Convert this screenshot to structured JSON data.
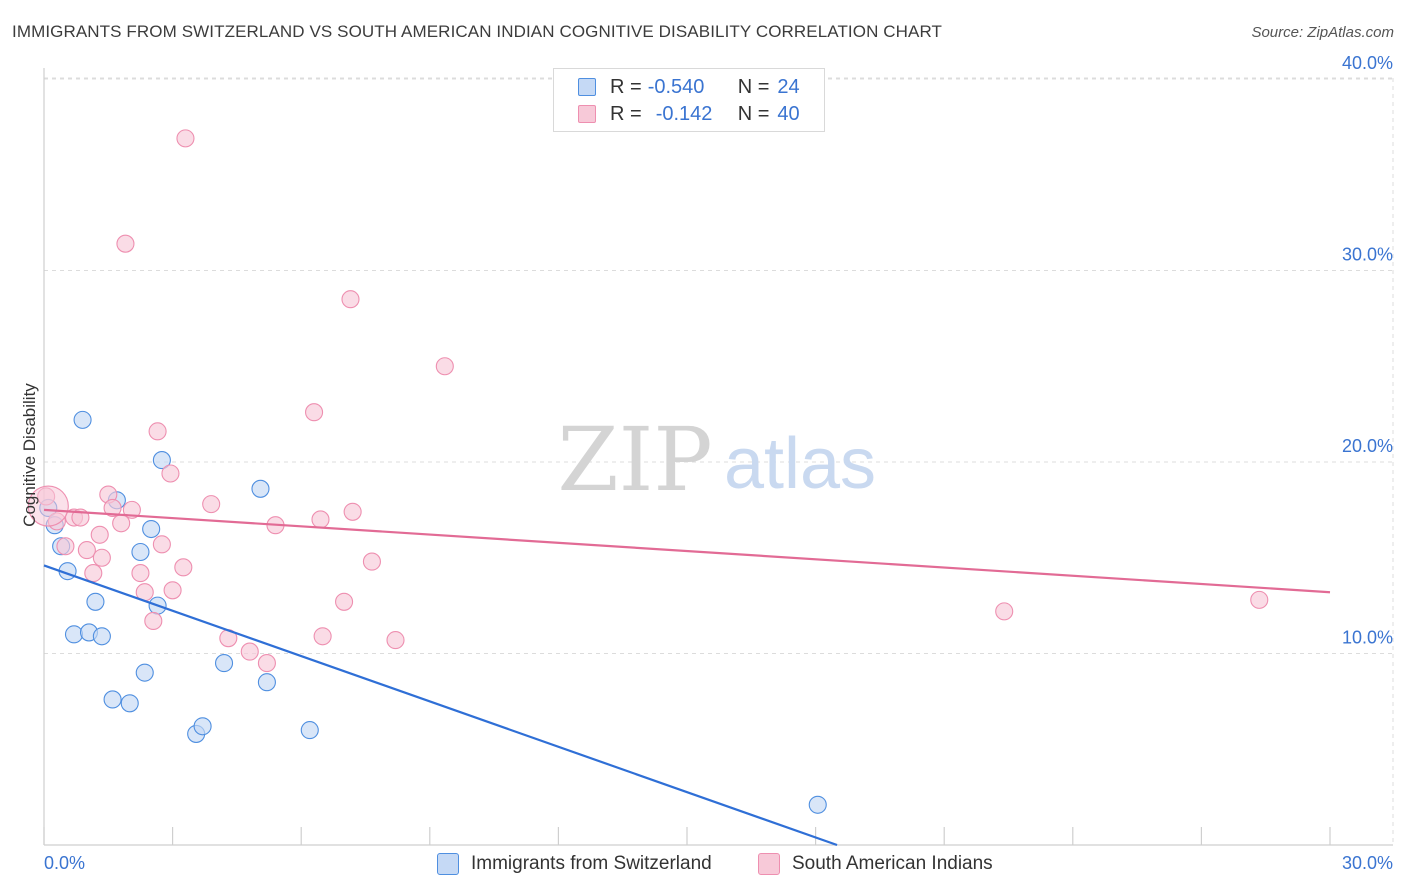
{
  "title": "IMMIGRANTS FROM SWITZERLAND VS SOUTH AMERICAN INDIAN COGNITIVE DISABILITY CORRELATION CHART",
  "source": "Source: ZipAtlas.com",
  "watermark": {
    "zip": "ZIP",
    "atlas": "atlas"
  },
  "legend": {
    "r_label": "R =",
    "n_label": "N =",
    "series1": {
      "r": "-0.540",
      "n": "24"
    },
    "series2": {
      "r": "-0.142",
      "n": "40"
    }
  },
  "chart_data": {
    "type": "scatter",
    "title": "IMMIGRANTS FROM SWITZERLAND VS SOUTH AMERICAN INDIAN COGNITIVE DISABILITY CORRELATION CHART",
    "xlabel": "",
    "ylabel": "Cognitive Disability",
    "xlim": [
      0,
      30
    ],
    "ylim": [
      0,
      42
    ],
    "x_tick_labels": [
      "0.0%",
      "30.0%"
    ],
    "y_ticks": [
      10,
      20,
      30,
      40
    ],
    "y_tick_labels": [
      "10.0%",
      "20.0%",
      "30.0%",
      "40.0%"
    ],
    "grid": true,
    "legend_position": "bottom",
    "series": [
      {
        "name": "Immigrants from Switzerland",
        "color": "#4f8fe0",
        "fill": "#c5d9f5",
        "line_color": "#2f6fd6",
        "trendline": {
          "x": [
            0,
            18.5
          ],
          "y": [
            14.6,
            0
          ]
        },
        "points": [
          [
            0.1,
            17.6
          ],
          [
            0.25,
            16.7
          ],
          [
            0.4,
            15.6
          ],
          [
            0.55,
            14.3
          ],
          [
            0.7,
            11.0
          ],
          [
            0.9,
            22.2
          ],
          [
            1.05,
            11.1
          ],
          [
            1.2,
            12.7
          ],
          [
            1.35,
            10.9
          ],
          [
            1.6,
            7.6
          ],
          [
            1.7,
            18.0
          ],
          [
            2.0,
            7.4
          ],
          [
            2.25,
            15.3
          ],
          [
            2.35,
            9.0
          ],
          [
            2.5,
            16.5
          ],
          [
            2.65,
            12.5
          ],
          [
            2.75,
            20.1
          ],
          [
            3.55,
            5.8
          ],
          [
            3.7,
            6.2
          ],
          [
            4.2,
            9.5
          ],
          [
            5.05,
            18.6
          ],
          [
            5.2,
            8.5
          ],
          [
            6.2,
            6.0
          ],
          [
            18.05,
            2.1
          ]
        ]
      },
      {
        "name": "South American Indians",
        "color": "#ee8fb0",
        "fill": "#f7c9d8",
        "line_color": "#e26b95",
        "trendline": {
          "x": [
            0,
            30
          ],
          "y": [
            17.5,
            13.2
          ]
        },
        "points": [
          [
            0.05,
            18.2
          ],
          [
            0.3,
            16.9
          ],
          [
            0.5,
            15.6
          ],
          [
            0.7,
            17.1
          ],
          [
            0.85,
            17.1
          ],
          [
            1.0,
            15.4
          ],
          [
            1.15,
            14.2
          ],
          [
            1.3,
            16.2
          ],
          [
            1.35,
            15.0
          ],
          [
            1.5,
            18.3
          ],
          [
            1.6,
            17.6
          ],
          [
            1.8,
            16.8
          ],
          [
            1.9,
            31.4
          ],
          [
            2.05,
            17.5
          ],
          [
            2.25,
            14.2
          ],
          [
            2.35,
            13.2
          ],
          [
            2.55,
            11.7
          ],
          [
            2.65,
            21.6
          ],
          [
            2.75,
            15.7
          ],
          [
            2.95,
            19.4
          ],
          [
            3.0,
            13.3
          ],
          [
            3.25,
            14.5
          ],
          [
            3.3,
            36.9
          ],
          [
            3.9,
            17.8
          ],
          [
            4.3,
            10.8
          ],
          [
            4.8,
            10.1
          ],
          [
            5.2,
            9.5
          ],
          [
            5.4,
            16.7
          ],
          [
            6.3,
            22.6
          ],
          [
            6.45,
            17.0
          ],
          [
            6.5,
            10.9
          ],
          [
            7.0,
            12.7
          ],
          [
            7.15,
            28.5
          ],
          [
            7.2,
            17.4
          ],
          [
            7.65,
            14.8
          ],
          [
            8.2,
            10.7
          ],
          [
            9.35,
            25.0
          ],
          [
            22.4,
            12.2
          ],
          [
            28.35,
            12.8
          ],
          [
            0.1,
            17.7
          ]
        ]
      }
    ]
  }
}
